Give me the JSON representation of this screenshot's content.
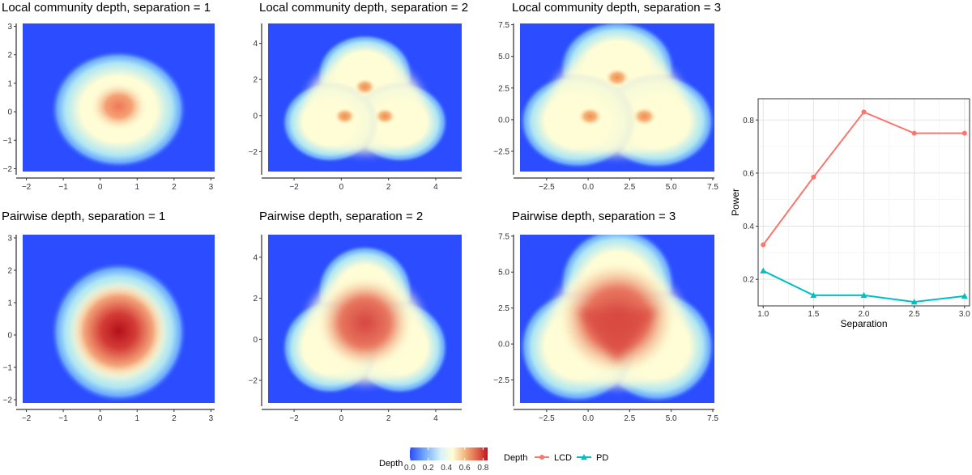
{
  "colors": {
    "heat_low": "#2b4cff",
    "heat_mid": "#fefdd6",
    "heat_high": "#c2151d",
    "lcd": "#f8766d",
    "pd": "#00bfc4"
  },
  "chart_data": [
    {
      "type": "heatmap",
      "title": "Local community depth, separation = 1",
      "xlim": [
        -2.1,
        3.1
      ],
      "ylim": [
        -2.1,
        3.1
      ],
      "x_ticks": [
        -2,
        -1,
        0,
        1,
        2,
        3
      ],
      "y_ticks": [
        -2,
        -1,
        0,
        1,
        2,
        3
      ],
      "x_tick_labels": [
        "−2",
        "−1",
        "0",
        "1",
        "2",
        "3"
      ],
      "y_tick_labels": [
        "−2",
        "−1",
        "0",
        "1",
        "2",
        "3"
      ],
      "separation": 1,
      "method": "LCD"
    },
    {
      "type": "heatmap",
      "title": "Local community depth, separation = 2",
      "xlim": [
        -3.1,
        5.1
      ],
      "ylim": [
        -3.1,
        5.1
      ],
      "x_ticks": [
        -2,
        0,
        2,
        4
      ],
      "y_ticks": [
        -2,
        0,
        2,
        4
      ],
      "x_tick_labels": [
        "−2",
        "0",
        "2",
        "4"
      ],
      "y_tick_labels": [
        "−2",
        "0",
        "2",
        "4"
      ],
      "separation": 2,
      "method": "LCD"
    },
    {
      "type": "heatmap",
      "title": "Local community depth, separation = 3",
      "xlim": [
        -4.1,
        7.6
      ],
      "ylim": [
        -4.1,
        7.6
      ],
      "x_ticks": [
        -2.5,
        0,
        2.5,
        5,
        7.5
      ],
      "y_ticks": [
        -2.5,
        0,
        2.5,
        5,
        7.5
      ],
      "x_tick_labels": [
        "−2.5",
        "0.0",
        "2.5",
        "5.0",
        "7.5"
      ],
      "y_tick_labels": [
        "−2.5",
        "0.0",
        "2.5",
        "5.0",
        "7.5"
      ],
      "separation": 3,
      "method": "LCD"
    },
    {
      "type": "heatmap",
      "title": "Pairwise depth, separation = 1",
      "xlim": [
        -2.1,
        3.1
      ],
      "ylim": [
        -2.1,
        3.1
      ],
      "x_ticks": [
        -2,
        -1,
        0,
        1,
        2,
        3
      ],
      "y_ticks": [
        -2,
        -1,
        0,
        1,
        2,
        3
      ],
      "x_tick_labels": [
        "−2",
        "−1",
        "0",
        "1",
        "2",
        "3"
      ],
      "y_tick_labels": [
        "−2",
        "−1",
        "0",
        "1",
        "2",
        "3"
      ],
      "separation": 1,
      "method": "PD"
    },
    {
      "type": "heatmap",
      "title": "Pairwise depth, separation = 2",
      "xlim": [
        -3.1,
        5.1
      ],
      "ylim": [
        -3.1,
        5.1
      ],
      "x_ticks": [
        -2,
        0,
        2,
        4
      ],
      "y_ticks": [
        -2,
        0,
        2,
        4
      ],
      "x_tick_labels": [
        "−2",
        "0",
        "2",
        "4"
      ],
      "y_tick_labels": [
        "−2",
        "0",
        "2",
        "4"
      ],
      "separation": 2,
      "method": "PD"
    },
    {
      "type": "heatmap",
      "title": "Pairwise depth, separation = 3",
      "xlim": [
        -4.1,
        7.6
      ],
      "ylim": [
        -4.1,
        7.6
      ],
      "x_ticks": [
        -2.5,
        0,
        2.5,
        5,
        7.5
      ],
      "y_ticks": [
        -2.5,
        0,
        2.5,
        5,
        7.5
      ],
      "x_tick_labels": [
        "−2.5",
        "0.0",
        "2.5",
        "5.0",
        "7.5"
      ],
      "y_tick_labels": [
        "−2.5",
        "0.0",
        "2.5",
        "5.0",
        "7.5"
      ],
      "separation": 3,
      "method": "PD"
    },
    {
      "type": "line",
      "title": "",
      "xlabel": "Separation",
      "ylabel": "Power",
      "xlim": [
        0.95,
        3.05
      ],
      "ylim": [
        0.1,
        0.88
      ],
      "x_ticks": [
        1,
        1.5,
        2,
        2.5,
        3
      ],
      "y_ticks": [
        0.2,
        0.4,
        0.6,
        0.8
      ],
      "x_tick_labels": [
        "1.0",
        "1.5",
        "2.0",
        "2.5",
        "3.0"
      ],
      "y_tick_labels": [
        "0.2",
        "0.4",
        "0.6",
        "0.8"
      ],
      "grid": true,
      "x": [
        1,
        1.5,
        2,
        2.5,
        3
      ],
      "series": [
        {
          "name": "LCD",
          "values": [
            0.33,
            0.585,
            0.83,
            0.75,
            0.75
          ],
          "marker": "circle"
        },
        {
          "name": "PD",
          "values": [
            0.232,
            0.14,
            0.14,
            0.115,
            0.137
          ],
          "marker": "triangle"
        }
      ]
    }
  ],
  "legends": {
    "depth_scale": {
      "title": "Depth",
      "range": [
        0,
        0.85
      ],
      "ticks": [
        0.0,
        0.2,
        0.4,
        0.6,
        0.8
      ],
      "tick_labels": [
        "0.0",
        "0.2",
        "0.4",
        "0.6",
        "0.8"
      ]
    },
    "method": {
      "title": "Depth",
      "items": [
        "LCD",
        "PD"
      ]
    }
  }
}
